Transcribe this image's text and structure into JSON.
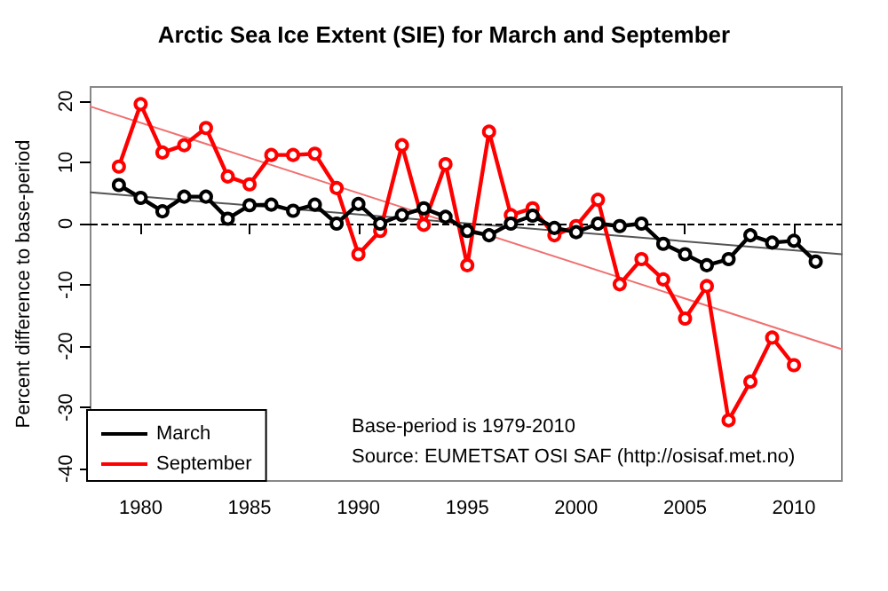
{
  "chart_data": {
    "type": "line",
    "title": "Arctic Sea Ice Extent (SIE) for March and September",
    "ylabel": "Percent difference to base-period",
    "xlim": [
      1977.7,
      2012.2
    ],
    "xticks": [
      1980,
      1985,
      1990,
      1995,
      2000,
      2005,
      2010
    ],
    "ylim": [
      -42,
      22.3
    ],
    "yticks": [
      -40,
      -30,
      -20,
      -10,
      0,
      10,
      20
    ],
    "grid": false,
    "legend": "bottom left",
    "marker": "circle",
    "line_style": "solid",
    "series": [
      {
        "name": "March",
        "color": "#000000",
        "x": [
          1979,
          1980,
          1981,
          1982,
          1983,
          1984,
          1985,
          1986,
          1987,
          1988,
          1989,
          1990,
          1991,
          1992,
          1993,
          1994,
          1995,
          1996,
          1997,
          1998,
          1999,
          2000,
          2001,
          2002,
          2003,
          2004,
          2005,
          2006,
          2007,
          2008,
          2009,
          2010,
          2011
        ],
        "values": [
          6.3,
          4.2,
          2.0,
          4.4,
          4.4,
          0.8,
          3.0,
          3.1,
          2.1,
          3.1,
          0,
          3.2,
          0,
          1.4,
          2.5,
          1.1,
          -1.2,
          -1.9,
          0,
          1.3,
          -0.7,
          -1.4,
          0,
          -0.4,
          0,
          -3.3,
          -5.0,
          -6.8,
          -5.8,
          -1.9,
          -3.1,
          -2.8,
          -6.2
        ]
      },
      {
        "name": "September",
        "color": "#ff0000",
        "x": [
          1979,
          1980,
          1981,
          1982,
          1983,
          1984,
          1985,
          1986,
          1987,
          1988,
          1989,
          1990,
          1991,
          1992,
          1993,
          1994,
          1995,
          1996,
          1997,
          1998,
          1999,
          2000,
          2001,
          2002,
          2003,
          2004,
          2005,
          2006,
          2007,
          2008,
          2009,
          2010
        ],
        "values": [
          9.3,
          19.5,
          11.6,
          12.8,
          15.6,
          7.7,
          6.4,
          11.2,
          11.2,
          11.4,
          5.8,
          -5.0,
          -1.2,
          12.8,
          -0.2,
          9.7,
          -6.8,
          15.0,
          1.4,
          2.5,
          -1.9,
          -0.4,
          3.9,
          -9.9,
          -5.8,
          -9.1,
          -15.5,
          -10.2,
          -32.1,
          -25.8,
          -18.6,
          -23.1
        ]
      },
      {
        "type": "line",
        "color": "#555555",
        "marker": "none",
        "x": [
          1977.7,
          2012.2
        ],
        "values": [
          5.1,
          -5.0
        ]
      },
      {
        "type": "line",
        "color": "#f07070",
        "marker": "none",
        "x": [
          1977.7,
          2012.2
        ],
        "values": [
          19.1,
          -20.5
        ]
      }
    ],
    "ref_lines": [
      {
        "axis": "y",
        "value": 0,
        "color": "#000000",
        "line_style": "dashed"
      }
    ],
    "annotations": [
      "Base-period is 1979-2010",
      "Source: EUMETSAT OSI SAF (http://osisaf.met.no)"
    ]
  }
}
